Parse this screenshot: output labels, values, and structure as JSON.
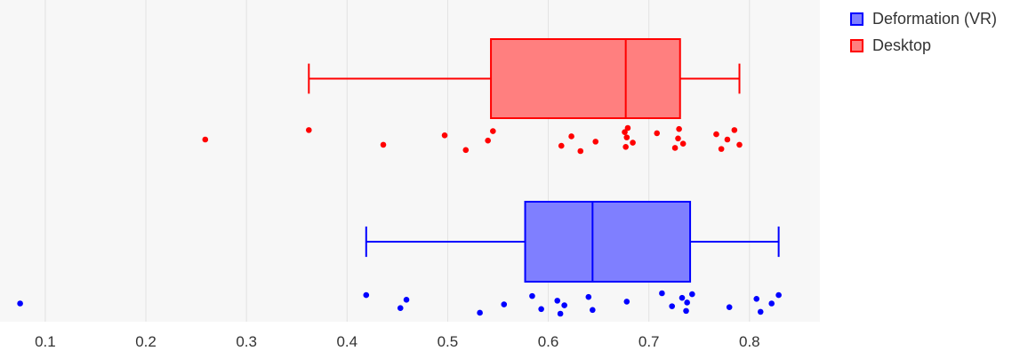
{
  "chart_data": {
    "type": "box",
    "orientation": "horizontal",
    "xlim": [
      0.055,
      0.87
    ],
    "x_ticks": [
      0.1,
      0.2,
      0.3,
      0.4,
      0.5,
      0.6,
      0.7,
      0.8
    ],
    "x_tick_labels": [
      "0.1",
      "0.2",
      "0.3",
      "0.4",
      "0.5",
      "0.6",
      "0.7",
      "0.8"
    ],
    "grid": true,
    "legend_position": "top-right",
    "series": [
      {
        "name": "Desktop",
        "stroke": "#ff0000",
        "fill": "#ff7f7f",
        "box": {
          "min": 0.362,
          "q1": 0.543,
          "median": 0.677,
          "q3": 0.731,
          "max": 0.79
        },
        "points": [
          0.259,
          0.362,
          0.436,
          0.497,
          0.518,
          0.54,
          0.545,
          0.613,
          0.623,
          0.632,
          0.647,
          0.676,
          0.677,
          0.678,
          0.679,
          0.684,
          0.708,
          0.726,
          0.729,
          0.73,
          0.734,
          0.767,
          0.772,
          0.778,
          0.785,
          0.79
        ]
      },
      {
        "name": "Deformation (VR)",
        "stroke": "#0000ff",
        "fill": "#7f7fff",
        "box": {
          "min": 0.419,
          "q1": 0.577,
          "median": 0.644,
          "q3": 0.741,
          "max": 0.829
        },
        "points": [
          0.075,
          0.419,
          0.453,
          0.459,
          0.532,
          0.556,
          0.584,
          0.593,
          0.609,
          0.612,
          0.616,
          0.64,
          0.644,
          0.678,
          0.713,
          0.723,
          0.733,
          0.737,
          0.738,
          0.743,
          0.78,
          0.807,
          0.811,
          0.822,
          0.829
        ]
      }
    ]
  },
  "legend": {
    "items": [
      {
        "label": "Deformation (VR)",
        "stroke": "#0000ff",
        "fill": "#7f7fff"
      },
      {
        "label": "Desktop",
        "stroke": "#ff0000",
        "fill": "#ff7f7f"
      }
    ]
  }
}
